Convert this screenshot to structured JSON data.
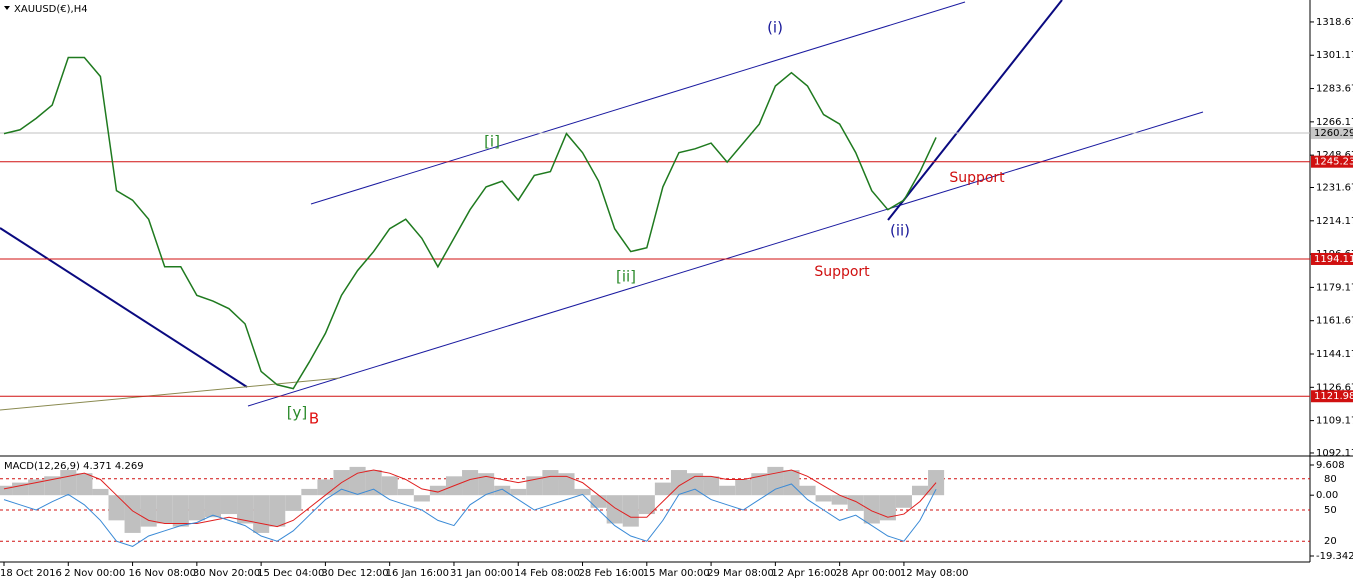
{
  "chart_data": [
    {
      "type": "line",
      "title": "XAUUSD(€),H4",
      "categories": [
        "18 Oct 2016",
        null,
        null,
        null,
        "2 Nov 00:00",
        null,
        null,
        null,
        "16 Nov 08:00",
        null,
        null,
        null,
        "30 Nov 20:00",
        null,
        null,
        null,
        "15 Dec 04:00",
        null,
        null,
        null,
        "30 Dec 12:00",
        null,
        null,
        null,
        "16 Jan 16:00",
        null,
        null,
        null,
        "31 Jan 00:00",
        null,
        null,
        null,
        "14 Feb 08:00",
        null,
        null,
        null,
        "28 Feb 16:00",
        null,
        null,
        null,
        "15 Mar 00:00",
        null,
        null,
        null,
        "29 Mar 08:00",
        null,
        null,
        null,
        "12 Apr 16:00",
        null,
        null,
        null,
        "28 Apr 00:00",
        null,
        null,
        null,
        "12 May 08:00",
        null,
        null
      ],
      "series": [
        {
          "color": "#1f7a1f",
          "values": [
            1260,
            1262,
            1268,
            1275,
            1300,
            1300,
            1290,
            1230,
            1225,
            1215,
            1190,
            1190,
            1175,
            1172,
            1168,
            1160,
            1135,
            1128,
            1126,
            1140,
            1155,
            1175,
            1188,
            1198,
            1210,
            1215,
            1205,
            1190,
            1205,
            1220,
            1232,
            1235,
            1225,
            1238,
            1240,
            1260,
            1250,
            1235,
            1210,
            1198,
            1200,
            1232,
            1250,
            1252,
            1255,
            1245,
            1255,
            1265,
            1285,
            1292,
            1285,
            1270,
            1265,
            1250,
            1230,
            1220,
            1225,
            1240,
            1258
          ]
        }
      ],
      "ylim": [
        1091.1,
        1330.2
      ],
      "yticks": [
        1092.17,
        1109.17,
        1126.67,
        1144.17,
        1161.67,
        1179.17,
        1196.67,
        1214.17,
        1231.67,
        1248.67,
        1266.17,
        1283.67,
        1301.17,
        1318.67
      ],
      "levels": [
        {
          "value": 1245.23,
          "color": "#d01010"
        },
        {
          "value": 1194.11,
          "color": "#d01010"
        },
        {
          "value": 1121.98,
          "color": "#d01010"
        }
      ],
      "current_price": 1260.29,
      "annotations": [
        {
          "text": "(i)",
          "color": "#1a1a9a"
        },
        {
          "text": "[i]",
          "color": "#2a8a2a"
        },
        {
          "text": "[ii]",
          "color": "#2a8a2a"
        },
        {
          "text": "(ii)",
          "color": "#1a1a9a"
        },
        {
          "text": "[y]",
          "color": "#2a8a2a"
        },
        {
          "text": "B",
          "color": "#e01010"
        },
        {
          "text": "Support",
          "color": "#d01010"
        },
        {
          "text": "Support",
          "color": "#d01010"
        }
      ]
    },
    {
      "type": "macd",
      "title": "MACD(12,26,9) 4.371 4.269",
      "series": [
        {
          "style": "bar",
          "color": "#c0c0c0",
          "values": [
            3,
            4,
            5,
            6,
            8,
            7,
            2,
            -8,
            -12,
            -10,
            -9,
            -10,
            -8,
            -7,
            -6,
            -9,
            -12,
            -10,
            -5,
            2,
            5,
            8,
            9,
            8,
            6,
            2,
            -2,
            3,
            6,
            8,
            7,
            3,
            2,
            6,
            8,
            7,
            2,
            -4,
            -9,
            -10,
            -6,
            4,
            8,
            7,
            6,
            3,
            5,
            7,
            9,
            8,
            3,
            -2,
            -3,
            -5,
            -9,
            -8,
            -4,
            3,
            8
          ]
        },
        {
          "style": "line",
          "color": "#e02020",
          "values": [
            2,
            3,
            4,
            5,
            6,
            7,
            5,
            0,
            -5,
            -8,
            -9,
            -9,
            -9,
            -8,
            -7,
            -8,
            -9,
            -10,
            -8,
            -4,
            0,
            4,
            7,
            8,
            7,
            5,
            2,
            1,
            3,
            5,
            6,
            5,
            4,
            5,
            6,
            6,
            4,
            0,
            -4,
            -7,
            -7,
            -2,
            3,
            6,
            6,
            5,
            5,
            6,
            7,
            8,
            6,
            3,
            0,
            -2,
            -5,
            -7,
            -6,
            -2,
            4
          ]
        },
        {
          "style": "line",
          "color": "#3a8ad6",
          "axis": "y2",
          "values": [
            60,
            55,
            50,
            58,
            65,
            55,
            40,
            20,
            15,
            25,
            30,
            35,
            38,
            45,
            40,
            35,
            25,
            20,
            30,
            45,
            60,
            70,
            65,
            70,
            60,
            55,
            50,
            40,
            35,
            55,
            65,
            70,
            60,
            50,
            55,
            60,
            65,
            50,
            35,
            25,
            20,
            40,
            65,
            70,
            60,
            55,
            50,
            60,
            70,
            75,
            60,
            50,
            40,
            45,
            35,
            25,
            20,
            40,
            70
          ]
        }
      ],
      "ylim": [
        -21.25,
        11.83
      ],
      "yticks": [
        -19.342,
        {
          "value": 0,
          "label": "0.00"
        },
        9.608
      ],
      "y2lim": [
        0,
        100
      ],
      "y2ticks": [
        20,
        50,
        80
      ]
    }
  ]
}
